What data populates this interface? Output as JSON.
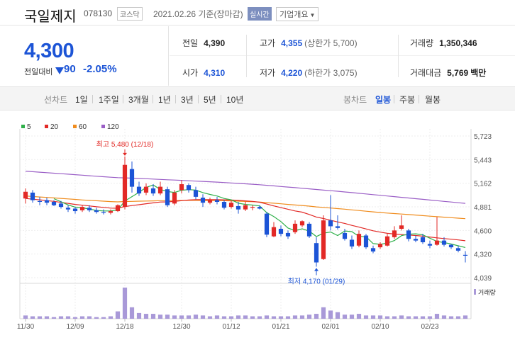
{
  "header": {
    "stock_name": "국일제지",
    "stock_code": "078130",
    "market": "코스닥",
    "date_basis": "2021.02.26 기준(장마감)",
    "realtime_label": "실시간",
    "company_info_label": "기업개요"
  },
  "price": {
    "current": "4,300",
    "change_label": "전일대비",
    "change_value": "90",
    "change_pct": "-2.05%",
    "down_color": "#1c54d6",
    "up_color": "#e22926"
  },
  "stats": {
    "prev_close_label": "전일",
    "prev_close": "4,390",
    "high_label": "고가",
    "high": "4,355",
    "upper_limit": "(상한가 5,700)",
    "volume_label": "거래량",
    "volume": "1,350,346",
    "open_label": "시가",
    "open": "4,310",
    "low_label": "저가",
    "low": "4,220",
    "lower_limit": "(하한가 3,075)",
    "amount_label": "거래대금",
    "amount": "5,769",
    "amount_unit": "백만"
  },
  "tabs": {
    "line_chart": "선차트",
    "periods": [
      "1일",
      "1주일",
      "3개월",
      "1년",
      "3년",
      "5년",
      "10년"
    ],
    "candle_chart": "봉차트",
    "candle_periods": [
      "일봉",
      "주봉",
      "월봉"
    ],
    "active_candle": "일봉"
  },
  "chart_data": {
    "type": "candlestick",
    "legend": [
      {
        "name": "5",
        "color": "#2fb04a"
      },
      {
        "name": "20",
        "color": "#e22926"
      },
      {
        "name": "60",
        "color": "#f08c1d"
      },
      {
        "name": "120",
        "color": "#9a5ec6"
      }
    ],
    "y_ticks": [
      "5,723",
      "5,443",
      "5,162",
      "4,881",
      "4,600",
      "4,320",
      "4,039"
    ],
    "ylim": [
      4039,
      5723
    ],
    "x_labels": [
      "11/30",
      "12/09",
      "12/18",
      "12/30",
      "01/12",
      "01/21",
      "02/01",
      "02/10",
      "02/23"
    ],
    "x_label_index": [
      0,
      7,
      14,
      22,
      29,
      36,
      43,
      50,
      57
    ],
    "annotations": {
      "high": {
        "text": "최고 5,480 (12/18)",
        "index": 14,
        "value": 5480
      },
      "low": {
        "text": "최저 4,170 (01/29)",
        "index": 41,
        "value": 4170
      }
    },
    "volume_label": "거래량",
    "candles": [
      [
        4980,
        5100,
        4920,
        5060
      ],
      [
        5050,
        5080,
        4930,
        4960
      ],
      [
        4950,
        5000,
        4900,
        4940
      ],
      [
        4960,
        4990,
        4900,
        4930
      ],
      [
        4940,
        4960,
        4890,
        4900
      ],
      [
        4920,
        4950,
        4860,
        4880
      ],
      [
        4870,
        4900,
        4820,
        4850
      ],
      [
        4860,
        4880,
        4800,
        4830
      ],
      [
        4840,
        4900,
        4820,
        4880
      ],
      [
        4870,
        4900,
        4820,
        4840
      ],
      [
        4840,
        4870,
        4800,
        4820
      ],
      [
        4820,
        4850,
        4790,
        4810
      ],
      [
        4810,
        4850,
        4790,
        4830
      ],
      [
        4830,
        4910,
        4820,
        4900
      ],
      [
        4880,
        5480,
        4850,
        5380
      ],
      [
        5330,
        5420,
        5050,
        5120
      ],
      [
        5120,
        5180,
        5010,
        5040
      ],
      [
        5050,
        5160,
        5020,
        5120
      ],
      [
        5100,
        5150,
        5010,
        5040
      ],
      [
        5040,
        5180,
        5020,
        5120
      ],
      [
        5090,
        5120,
        4880,
        4900
      ],
      [
        4920,
        5080,
        4900,
        5050
      ],
      [
        5080,
        5200,
        5040,
        5150
      ],
      [
        5140,
        5160,
        5050,
        5080
      ],
      [
        5080,
        5120,
        4970,
        5000
      ],
      [
        4990,
        5030,
        4880,
        4930
      ],
      [
        4930,
        4990,
        4910,
        4960
      ],
      [
        4960,
        5000,
        4910,
        4940
      ],
      [
        4940,
        4960,
        4850,
        4870
      ],
      [
        4880,
        4960,
        4860,
        4930
      ],
      [
        4890,
        4940,
        4800,
        4850
      ],
      [
        4850,
        4940,
        4830,
        4900
      ],
      [
        4870,
        4900,
        4840,
        4880
      ],
      [
        4880,
        4900,
        4850,
        4860
      ],
      [
        4800,
        4820,
        4520,
        4550
      ],
      [
        4530,
        4700,
        4520,
        4640
      ],
      [
        4620,
        4660,
        4530,
        4560
      ],
      [
        4570,
        4600,
        4500,
        4530
      ],
      [
        4580,
        4720,
        4560,
        4680
      ],
      [
        4660,
        4720,
        4640,
        4710
      ],
      [
        4680,
        4700,
        4510,
        4530
      ],
      [
        4450,
        4520,
        4170,
        4220
      ],
      [
        4260,
        4780,
        4250,
        4720
      ],
      [
        4720,
        5020,
        4600,
        4650
      ],
      [
        4650,
        4780,
        4610,
        4630
      ],
      [
        4570,
        4620,
        4480,
        4500
      ],
      [
        4490,
        4540,
        4380,
        4410
      ],
      [
        4420,
        4600,
        4400,
        4560
      ],
      [
        4540,
        4560,
        4380,
        4400
      ],
      [
        4390,
        4420,
        4330,
        4350
      ],
      [
        4400,
        4460,
        4380,
        4440
      ],
      [
        4420,
        4560,
        4410,
        4530
      ],
      [
        4520,
        4650,
        4500,
        4600
      ],
      [
        4620,
        4780,
        4600,
        4660
      ],
      [
        4600,
        4620,
        4470,
        4500
      ],
      [
        4500,
        4540,
        4460,
        4480
      ],
      [
        4520,
        4560,
        4440,
        4460
      ],
      [
        4440,
        4480,
        4390,
        4420
      ],
      [
        4430,
        4760,
        4420,
        4480
      ],
      [
        4480,
        4520,
        4410,
        4430
      ],
      [
        4430,
        4440,
        4380,
        4400
      ],
      [
        4390,
        4420,
        4340,
        4360
      ],
      [
        4310,
        4355,
        4220,
        4300
      ]
    ],
    "volumes": [
      4,
      3,
      3,
      3,
      2,
      3,
      3,
      2,
      3,
      3,
      2,
      2,
      3,
      9,
      38,
      14,
      7,
      6,
      6,
      5,
      5,
      4,
      4,
      4,
      5,
      4,
      3,
      4,
      3,
      3,
      4,
      4,
      3,
      3,
      4,
      3,
      3,
      3,
      4,
      4,
      5,
      6,
      14,
      10,
      8,
      5,
      5,
      6,
      4,
      4,
      4,
      3,
      3,
      4,
      3,
      3,
      3,
      3,
      6,
      4,
      3,
      3,
      4
    ],
    "ma5": [
      null,
      null,
      null,
      null,
      4978,
      4942,
      4904,
      4878,
      4868,
      4856,
      4838,
      4832,
      4832,
      4844,
      4950,
      5002,
      5054,
      5112,
      5140,
      5088,
      5064,
      5052,
      5078,
      5086,
      5080,
      5050,
      5028,
      5010,
      4980,
      4964,
      4924,
      4910,
      4902,
      4892,
      4812,
      4766,
      4706,
      4628,
      4598,
      4620,
      4592,
      4528,
      4568,
      4582,
      4540,
      4594,
      4586,
      4530,
      4526,
      4444,
      4436,
      4450,
      4480,
      4538,
      4556,
      4560,
      4548,
      4508,
      4470,
      4456,
      4440,
      4418,
      4398
    ],
    "ma20": [
      4980,
      4972,
      4964,
      4955,
      4946,
      4934,
      4922,
      4910,
      4900,
      4892,
      4882,
      4874,
      4866,
      4864,
      4884,
      4896,
      4906,
      4918,
      4928,
      4938,
      4940,
      4946,
      4954,
      4962,
      4966,
      4966,
      4966,
      4966,
      4964,
      4962,
      4958,
      4952,
      4946,
      4936,
      4914,
      4892,
      4872,
      4852,
      4832,
      4818,
      4790,
      4760,
      4742,
      4722,
      4702,
      4684,
      4660,
      4640,
      4618,
      4596,
      4580,
      4566,
      4558,
      4552,
      4546,
      4540,
      4532,
      4522,
      4512,
      4504,
      4496,
      4488,
      4478
    ],
    "ma60": [
      5010,
      5004,
      4998,
      4993,
      4987,
      4981,
      4975,
      4969,
      4963,
      4958,
      4953,
      4948,
      4943,
      4940,
      4944,
      4946,
      4948,
      4950,
      4952,
      4954,
      4954,
      4955,
      4957,
      4958,
      4958,
      4957,
      4956,
      4955,
      4953,
      4951,
      4948,
      4945,
      4942,
      4938,
      4931,
      4924,
      4917,
      4910,
      4903,
      4897,
      4889,
      4880,
      4874,
      4867,
      4860,
      4853,
      4845,
      4837,
      4829,
      4821,
      4814,
      4807,
      4801,
      4795,
      4789,
      4783,
      4777,
      4770,
      4764,
      4758,
      4752,
      4746,
      4740
    ],
    "ma120": [
      5305,
      5299,
      5293,
      5287,
      5281,
      5275,
      5269,
      5263,
      5257,
      5251,
      5245,
      5239,
      5233,
      5228,
      5225,
      5222,
      5218,
      5215,
      5211,
      5207,
      5203,
      5199,
      5195,
      5191,
      5187,
      5183,
      5179,
      5175,
      5170,
      5165,
      5160,
      5155,
      5150,
      5144,
      5137,
      5130,
      5123,
      5116,
      5109,
      5102,
      5095,
      5087,
      5080,
      5073,
      5066,
      5058,
      5050,
      5042,
      5034,
      5026,
      5018,
      5010,
      5002,
      4994,
      4986,
      4978,
      4970,
      4962,
      4954,
      4946,
      4938,
      4930,
      4922
    ]
  }
}
